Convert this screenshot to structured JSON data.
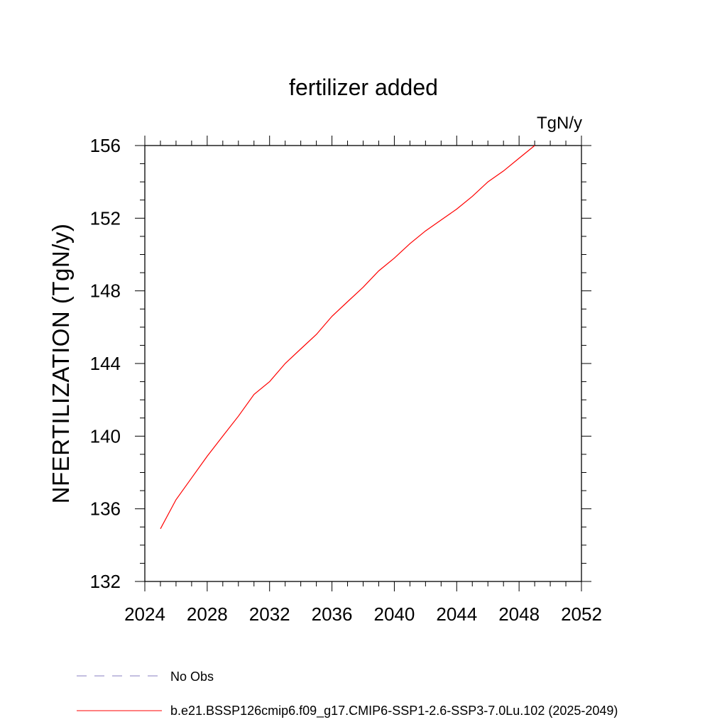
{
  "chart_data": {
    "type": "line",
    "title": "fertilizer added",
    "units_label": "TgN/y",
    "ylabel": "NFERTILIZATION  (TgN/y)",
    "xlabel": "",
    "xlim": [
      2024,
      2052
    ],
    "ylim": [
      132,
      156
    ],
    "x_ticks": [
      2024,
      2028,
      2032,
      2036,
      2040,
      2044,
      2048,
      2052
    ],
    "y_ticks": [
      132,
      136,
      140,
      144,
      148,
      152,
      156
    ],
    "x_minor_step": 1,
    "y_minor_step": 1,
    "grid": false,
    "legend_position": "bottom",
    "series": [
      {
        "name": "b.e21.BSSP126cmip6.f09_g17.CMIP6-SSP1-2.6-SSP3-7.0Lu.102 (2025-2049)",
        "color": "#ff0000",
        "style": "solid",
        "x": [
          2025,
          2026,
          2027,
          2028,
          2029,
          2030,
          2031,
          2032,
          2033,
          2034,
          2035,
          2036,
          2037,
          2038,
          2039,
          2040,
          2041,
          2042,
          2043,
          2044,
          2045,
          2046,
          2047,
          2048,
          2049
        ],
        "y": [
          134.9,
          136.5,
          137.7,
          138.9,
          140.0,
          141.1,
          142.3,
          143.0,
          144.0,
          144.8,
          145.6,
          146.6,
          147.4,
          148.2,
          149.1,
          149.8,
          150.6,
          151.3,
          151.9,
          152.5,
          153.2,
          154.0,
          154.6,
          155.3,
          156.0
        ]
      }
    ],
    "legend": [
      {
        "label": "No Obs",
        "color": "#8a7fc0",
        "style": "dashed"
      },
      {
        "label": "b.e21.BSSP126cmip6.f09_g17.CMIP6-SSP1-2.6-SSP3-7.0Lu.102 (2025-2049)",
        "color": "#ff0000",
        "style": "solid"
      }
    ]
  }
}
